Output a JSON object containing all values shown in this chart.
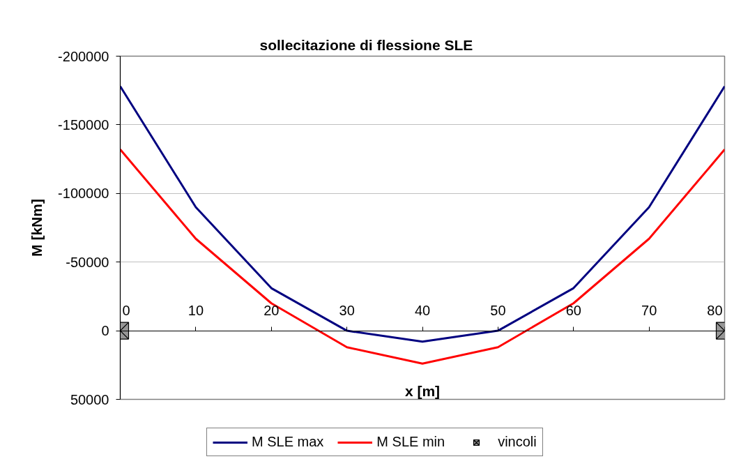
{
  "chart_data": {
    "type": "line",
    "title": "sollecitazione di flessione SLE",
    "xlabel": "x [m]",
    "ylabel": "M [kNm]",
    "x": [
      0,
      10,
      20,
      30,
      40,
      50,
      60,
      70,
      80
    ],
    "series": [
      {
        "name": "M SLE max",
        "color": "#000080",
        "values": [
          -178000,
          -90000,
          -31000,
          0,
          8000,
          0,
          -31000,
          -90000,
          -178000
        ]
      },
      {
        "name": "M SLE min",
        "color": "#ff0000",
        "values": [
          -132000,
          -67000,
          -20000,
          12000,
          24000,
          12000,
          -20000,
          -67000,
          -132000
        ]
      },
      {
        "name": "vincoli",
        "type": "scatter",
        "color": "#969696",
        "marker": "square",
        "x": [
          0,
          80
        ],
        "values": [
          0,
          0
        ]
      }
    ],
    "xlim": [
      0,
      80
    ],
    "xticks": [
      0,
      10,
      20,
      30,
      40,
      50,
      60,
      70,
      80
    ],
    "ylim": [
      50000,
      -200000
    ],
    "yticks": [
      -200000,
      -150000,
      -100000,
      -50000,
      0,
      50000
    ],
    "grid": "y",
    "legend": "bottom",
    "line_style": "solid"
  }
}
